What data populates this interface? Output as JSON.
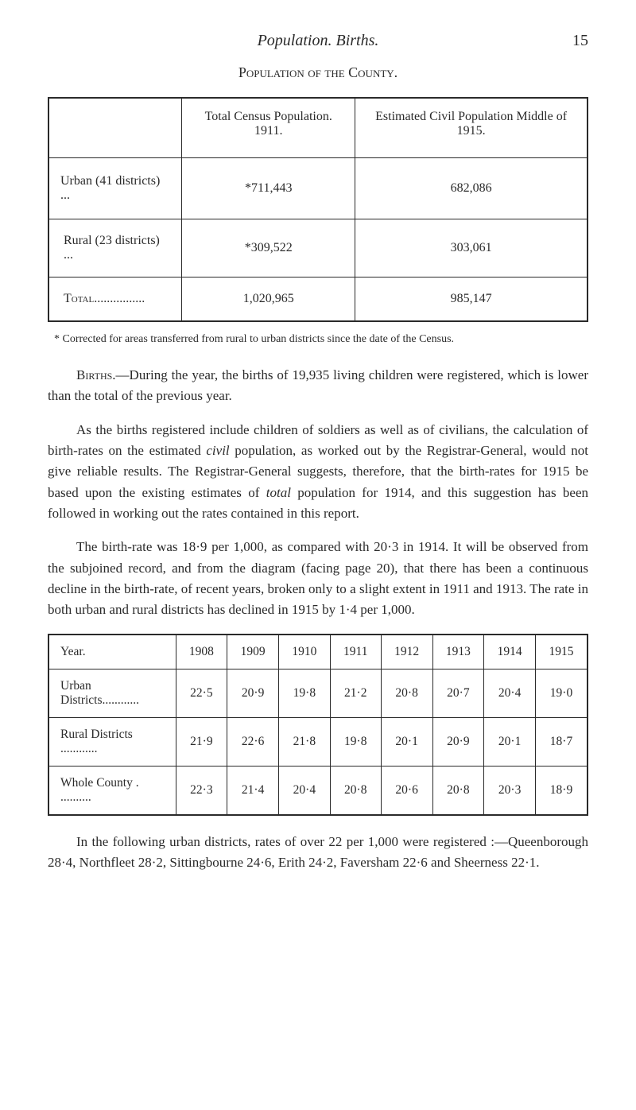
{
  "header": {
    "title": "Population. Births.",
    "page_number": "15"
  },
  "subtitle": "Population of the County.",
  "table1": {
    "header": {
      "col1": "",
      "col2": "Total Census Population. 1911.",
      "col3": "Estimated Civil Population Middle of 1915."
    },
    "rows": [
      {
        "label": "Urban (41 districts) ...",
        "col2": "*711,443",
        "col3": "682,086"
      },
      {
        "label": "Rural (23 districts)  ...",
        "col2": "*309,522",
        "col3": "303,061"
      }
    ],
    "total": {
      "label": "Total................",
      "col2": "1,020,965",
      "col3": "985,147"
    }
  },
  "footnote": "* Corrected for areas transferred from rural to urban districts since the date of the Census.",
  "paragraphs": {
    "p1_pre": "Births",
    "p1": ".—During the year, the births of 19,935 living children were registered, which is lower than the total of the previous year.",
    "p2_a": "As the births registered include children of soldiers as well as of civilians, the calculation of birth-rates on the estimated ",
    "p2_i1": "civil",
    "p2_b": " population, as worked out by the Registrar-General, would not give reliable results. The Registrar-General suggests, therefore, that the birth-rates for 1915 be based upon the existing estimates of ",
    "p2_i2": "total",
    "p2_c": " population for 1914, and this suggestion has been followed in working out the rates contained in this report.",
    "p3": "The birth-rate was 18·9 per 1,000, as compared with 20·3 in 1914. It will be observed from the subjoined record, and from the diagram (facing page 20), that there has been a continuous decline in the birth-rate, of recent years, broken only to a slight extent in 1911 and 1913. The rate in both urban and rural districts has declined in 1915 by 1·4 per 1,000.",
    "p4": "In the following urban districts, rates of over 22 per 1,000 were registered :—Queenborough 28·4, Northfleet 28·2, Sittingbourne 24·6, Erith 24·2, Faversham 22·6 and Sheerness 22·1."
  },
  "table2": {
    "header": [
      "Year.",
      "1908",
      "1909",
      "1910",
      "1911",
      "1912",
      "1913",
      "1914",
      "1915"
    ],
    "rows": [
      {
        "label": "Urban Districts............",
        "cells": [
          "22·5",
          "20·9",
          "19·8",
          "21·2",
          "20·8",
          "20·7",
          "20·4",
          "19·0"
        ]
      },
      {
        "label": "Rural Districts ............",
        "cells": [
          "21·9",
          "22·6",
          "21·8",
          "19·8",
          "20·1",
          "20·9",
          "20·1",
          "18·7"
        ]
      }
    ],
    "total": {
      "label": "Whole County . ..........",
      "cells": [
        "22·3",
        "21·4",
        "20·4",
        "20·8",
        "20·6",
        "20·8",
        "20·3",
        "18·9"
      ]
    }
  }
}
